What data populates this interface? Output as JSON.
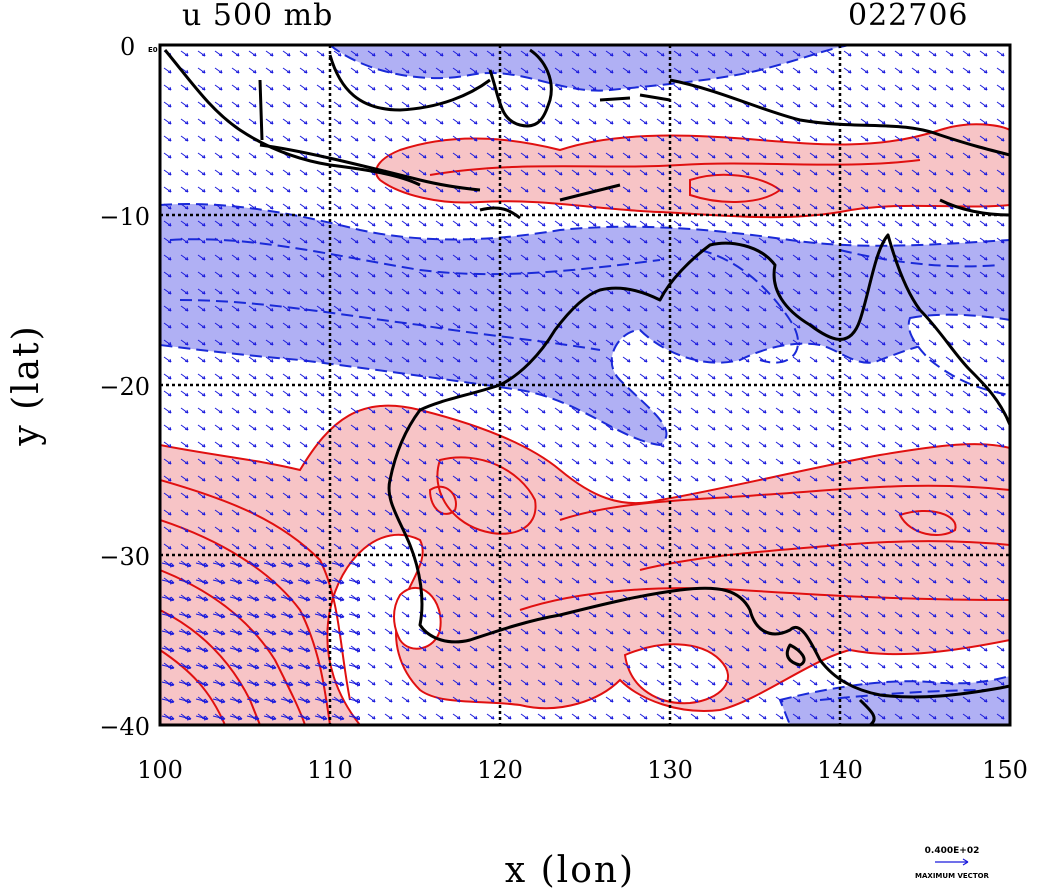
{
  "title_left": "u 500 mb",
  "title_right": "022706",
  "corner_label": "0",
  "corner_sub": "E0",
  "x_axis_label": "x (lon)",
  "y_axis_label": "y (lat)",
  "x_ticks": [
    "100",
    "110",
    "120",
    "130",
    "140",
    "150"
  ],
  "y_ticks": [
    "0",
    "−10",
    "−20",
    "−30",
    "−40"
  ],
  "vector_scale_value": "0.400E+02",
  "vector_scale_label": "MAXIMUM VECTOR",
  "colors": {
    "positive_fill": "#f7c4c6",
    "negative_fill": "#b0b0f4",
    "positive_contour": "#e01010",
    "negative_contour": "#1a2ad8",
    "vector": "#1a1adc",
    "coast": "#000000"
  },
  "chart_data": {
    "type": "heatmap",
    "title": "u 500 mb",
    "date": "022706",
    "xlabel": "x (lon)",
    "ylabel": "y (lat)",
    "xlim": [
      100,
      150
    ],
    "ylim": [
      -40,
      0
    ],
    "x_ticks": [
      100,
      110,
      120,
      130,
      140,
      150
    ],
    "y_ticks": [
      0,
      -10,
      -20,
      -30,
      -40
    ],
    "grid": true,
    "legend": "bottom-right vector scale",
    "max_vector": 40
  }
}
